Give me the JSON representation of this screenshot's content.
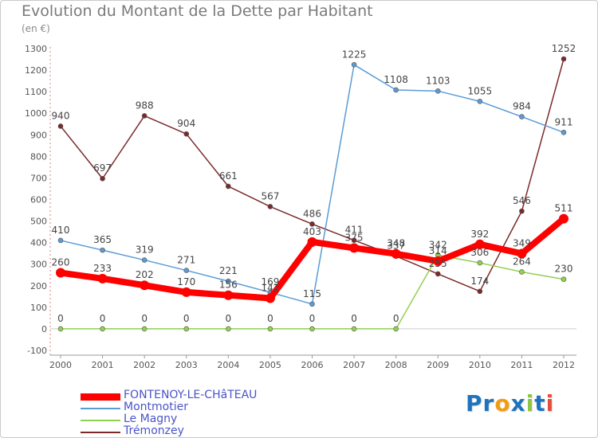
{
  "title": "Evolution du Montant de la Dette par Habitant",
  "unit": "(en €)",
  "chart_data": {
    "type": "line",
    "x": [
      "2000",
      "2001",
      "2002",
      "2003",
      "2004",
      "2005",
      "2006",
      "2007",
      "2008",
      "2009",
      "2010",
      "2011",
      "2012"
    ],
    "ylim": [
      -100,
      1300
    ],
    "yticks": [
      -100,
      0,
      100,
      200,
      300,
      400,
      500,
      600,
      700,
      800,
      900,
      1000,
      1100,
      1200,
      1300
    ],
    "grid": false,
    "legend_position": "bottom-left",
    "series": [
      {
        "name": "FONTENOY-LE-CHâTEAU",
        "color": "#ff0000",
        "width": 8,
        "values": [
          260,
          233,
          202,
          170,
          156,
          142,
          403,
          375,
          348,
          314,
          392,
          349,
          511
        ],
        "labels": [
          "260",
          "233",
          "202",
          "170",
          "156",
          "142",
          "403",
          "375",
          "348",
          "314",
          "392",
          "349",
          "511"
        ]
      },
      {
        "name": "Montmotier",
        "color": "#5b9bd5",
        "width": 1.5,
        "values": [
          410,
          365,
          319,
          271,
          221,
          169,
          115,
          1225,
          1108,
          1103,
          1055,
          984,
          911
        ],
        "labels": [
          "410",
          "365",
          "319",
          "271",
          "221",
          "169",
          "115",
          "1225",
          "1108",
          "1103",
          "1055",
          "984",
          "911"
        ]
      },
      {
        "name": "Le Magny",
        "color": "#92d050",
        "width": 1.5,
        "values": [
          0,
          0,
          0,
          0,
          0,
          0,
          0,
          0,
          0,
          342,
          306,
          264,
          230
        ],
        "labels": [
          "0",
          "0",
          "0",
          "0",
          "0",
          "0",
          "0",
          "0",
          "0",
          "342",
          "306",
          "264",
          "230"
        ]
      },
      {
        "name": "Trémonzey",
        "color": "#7b2a2a",
        "width": 1.5,
        "values": [
          940,
          697,
          988,
          904,
          661,
          567,
          486,
          411,
          337,
          255,
          174,
          546,
          1252
        ],
        "labels": [
          "940",
          "697",
          "988",
          "904",
          "661",
          "567",
          "486",
          "411",
          "337",
          "255",
          "174",
          "546",
          "1252"
        ]
      }
    ]
  },
  "logo": {
    "text": "Proxiti",
    "letters": [
      {
        "ch": "P",
        "color": "#1e73be"
      },
      {
        "ch": "r",
        "color": "#1e73be"
      },
      {
        "ch": "o",
        "color": "#f39c12"
      },
      {
        "ch": "x",
        "color": "#1e73be"
      },
      {
        "ch": "i",
        "color": "#8dc63f"
      },
      {
        "ch": "t",
        "color": "#1e73be"
      },
      {
        "ch": "i",
        "color": "#e74c3c"
      }
    ]
  }
}
